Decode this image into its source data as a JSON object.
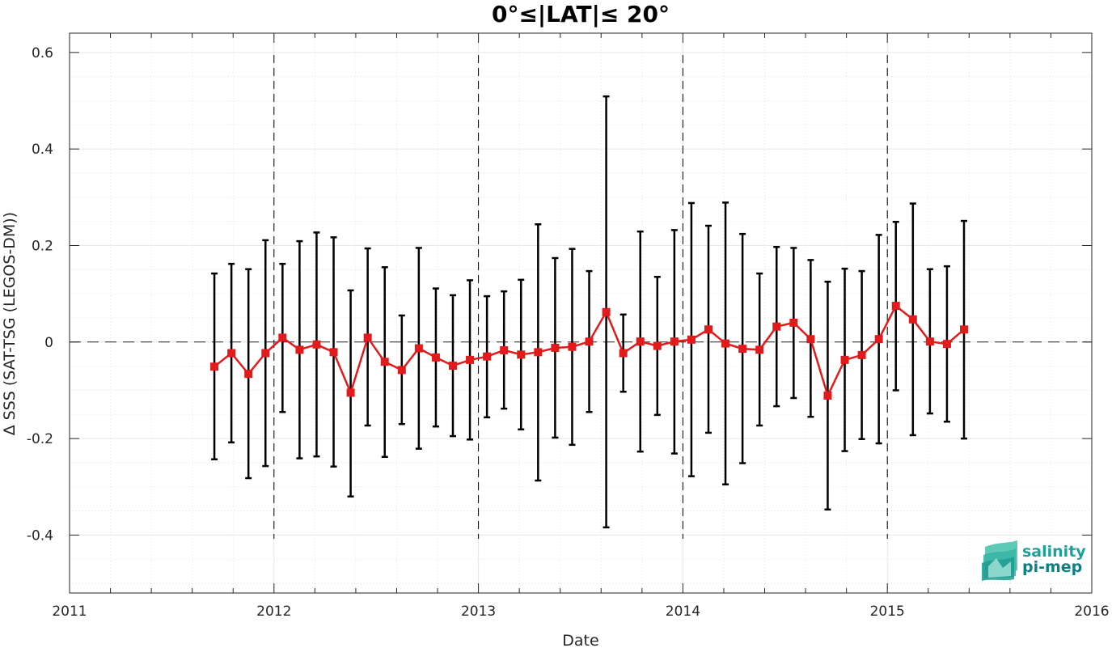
{
  "chart_data": {
    "type": "line",
    "title": "0°≤|LAT|≤ 20°",
    "xlabel": "Date",
    "ylabel": "∆ SSS (SAT-TSG (LEGOS-DM))",
    "xlim": [
      "2011-01-01",
      "2016-01-01"
    ],
    "ylim": [
      -0.52,
      0.64
    ],
    "x_ticks": [
      "2011",
      "2012",
      "2013",
      "2014",
      "2015",
      "2016"
    ],
    "y_ticks": [
      -0.4,
      -0.2,
      0,
      0.2,
      0.4,
      0.6
    ],
    "y_tick_labels": [
      "-0.4",
      "-0.2",
      "0",
      "0.2",
      "0.4",
      "0.6"
    ],
    "grid": true,
    "year_separators": [
      "2012",
      "2013",
      "2014",
      "2015"
    ],
    "zero_line": 0,
    "series": [
      {
        "color": "#e31a1c",
        "error_bar_color": "#000000",
        "points": [
          {
            "x": "2011-09",
            "y": -0.051,
            "low": -0.243,
            "high": 0.142
          },
          {
            "x": "2011-10",
            "y": -0.023,
            "low": -0.208,
            "high": 0.162
          },
          {
            "x": "2011-11",
            "y": -0.066,
            "low": -0.282,
            "high": 0.151
          },
          {
            "x": "2011-12",
            "y": -0.023,
            "low": -0.257,
            "high": 0.211
          },
          {
            "x": "2012-01",
            "y": 0.009,
            "low": -0.145,
            "high": 0.162
          },
          {
            "x": "2012-02",
            "y": -0.016,
            "low": -0.241,
            "high": 0.209
          },
          {
            "x": "2012-03",
            "y": -0.005,
            "low": -0.237,
            "high": 0.227
          },
          {
            "x": "2012-04",
            "y": -0.021,
            "low": -0.258,
            "high": 0.217
          },
          {
            "x": "2012-05",
            "y": -0.105,
            "low": -0.32,
            "high": 0.107
          },
          {
            "x": "2012-06",
            "y": 0.009,
            "low": -0.173,
            "high": 0.194
          },
          {
            "x": "2012-07",
            "y": -0.041,
            "low": -0.238,
            "high": 0.155
          },
          {
            "x": "2012-08",
            "y": -0.058,
            "low": -0.17,
            "high": 0.055
          },
          {
            "x": "2012-09",
            "y": -0.013,
            "low": -0.221,
            "high": 0.195
          },
          {
            "x": "2012-10",
            "y": -0.032,
            "low": -0.175,
            "high": 0.111
          },
          {
            "x": "2012-11",
            "y": -0.049,
            "low": -0.195,
            "high": 0.097
          },
          {
            "x": "2012-12",
            "y": -0.037,
            "low": -0.202,
            "high": 0.128
          },
          {
            "x": "2013-01",
            "y": -0.03,
            "low": -0.156,
            "high": 0.095
          },
          {
            "x": "2013-02",
            "y": -0.017,
            "low": -0.138,
            "high": 0.105
          },
          {
            "x": "2013-03",
            "y": -0.026,
            "low": -0.181,
            "high": 0.129
          },
          {
            "x": "2013-04",
            "y": -0.021,
            "low": -0.287,
            "high": 0.244
          },
          {
            "x": "2013-05",
            "y": -0.012,
            "low": -0.198,
            "high": 0.174
          },
          {
            "x": "2013-06",
            "y": -0.01,
            "low": -0.213,
            "high": 0.193
          },
          {
            "x": "2013-07",
            "y": 0.001,
            "low": -0.145,
            "high": 0.147
          },
          {
            "x": "2013-08",
            "y": 0.062,
            "low": -0.384,
            "high": 0.509
          },
          {
            "x": "2013-09",
            "y": -0.023,
            "low": -0.103,
            "high": 0.057
          },
          {
            "x": "2013-10",
            "y": 0.001,
            "low": -0.227,
            "high": 0.229
          },
          {
            "x": "2013-11",
            "y": -0.008,
            "low": -0.151,
            "high": 0.135
          },
          {
            "x": "2013-12",
            "y": 0.001,
            "low": -0.231,
            "high": 0.232
          },
          {
            "x": "2014-01",
            "y": 0.005,
            "low": -0.278,
            "high": 0.288
          },
          {
            "x": "2014-02",
            "y": 0.026,
            "low": -0.188,
            "high": 0.241
          },
          {
            "x": "2014-03",
            "y": -0.003,
            "low": -0.295,
            "high": 0.289
          },
          {
            "x": "2014-04",
            "y": -0.014,
            "low": -0.251,
            "high": 0.224
          },
          {
            "x": "2014-05",
            "y": -0.016,
            "low": -0.173,
            "high": 0.142
          },
          {
            "x": "2014-06",
            "y": 0.032,
            "low": -0.133,
            "high": 0.197
          },
          {
            "x": "2014-07",
            "y": 0.04,
            "low": -0.116,
            "high": 0.195
          },
          {
            "x": "2014-08",
            "y": 0.006,
            "low": -0.155,
            "high": 0.17
          },
          {
            "x": "2014-09",
            "y": -0.111,
            "low": -0.347,
            "high": 0.125
          },
          {
            "x": "2014-10",
            "y": -0.037,
            "low": -0.226,
            "high": 0.152
          },
          {
            "x": "2014-11",
            "y": -0.027,
            "low": -0.201,
            "high": 0.147
          },
          {
            "x": "2014-12",
            "y": 0.006,
            "low": -0.21,
            "high": 0.222
          },
          {
            "x": "2015-01",
            "y": 0.075,
            "low": -0.1,
            "high": 0.249
          },
          {
            "x": "2015-02",
            "y": 0.047,
            "low": -0.193,
            "high": 0.287
          },
          {
            "x": "2015-03",
            "y": 0.001,
            "low": -0.148,
            "high": 0.151
          },
          {
            "x": "2015-04",
            "y": -0.004,
            "low": -0.165,
            "high": 0.157
          },
          {
            "x": "2015-05",
            "y": 0.026,
            "low": -0.2,
            "high": 0.251
          }
        ]
      }
    ]
  },
  "logo": {
    "line1": "salinity",
    "line2": "pi-mep",
    "color": "#1aa39a",
    "color_dark": "#0f7f86"
  }
}
